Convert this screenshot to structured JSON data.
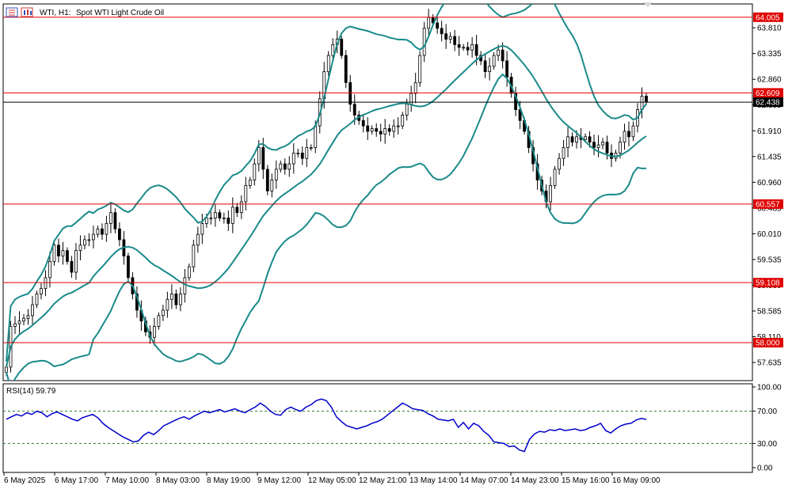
{
  "header": {
    "symbol_label": "WTI, H1:",
    "description": "Spot WTI Light Crude Oil"
  },
  "colors": {
    "background": "#ffffff",
    "frame": "#000000",
    "candle": "#000000",
    "bollinger": "#1a8a8a",
    "hline": "#e00000",
    "price_line": "#000000",
    "rsi_line": "#0000cc",
    "rsi_level": "#2a7a2a",
    "label_text": "#ffffff",
    "icon_red": "#d03030",
    "icon_blue": "#3050c0"
  },
  "chart_data": [
    {
      "type": "candlestick",
      "name": "price",
      "timeframe": "H1",
      "ylim": [
        57.3,
        64.25
      ],
      "yticks": [
        57.635,
        58.11,
        58.585,
        59.06,
        59.535,
        60.01,
        60.485,
        60.96,
        61.435,
        61.91,
        62.385,
        62.86,
        63.335,
        63.81
      ],
      "ytick_labels": [
        "57.635",
        "58.110",
        "58.585",
        "59.060",
        "59.535",
        "60.010",
        "60.485",
        "60.960",
        "61.435",
        "61.910",
        "62.385",
        "62.860",
        "63.335",
        "63.810"
      ],
      "xtick_labels": [
        "6 May 2025",
        "6 May 17:00",
        "7 May 10:00",
        "8 May 03:00",
        "8 May 19:00",
        "9 May 12:00",
        "12 May 05:00",
        "12 May 21:00",
        "13 May 14:00",
        "14 May 07:00",
        "14 May 23:00",
        "15 May 16:00",
        "16 May 09:00"
      ],
      "horizontal_levels": [
        {
          "value": 64.005,
          "label": "64.005"
        },
        {
          "value": 62.609,
          "label": "62.609"
        },
        {
          "value": 60.557,
          "label": "60.557"
        },
        {
          "value": 59.108,
          "label": "59.108"
        },
        {
          "value": 58.0,
          "label": "58.000"
        }
      ],
      "current_price": {
        "value": 62.438,
        "label": "62.438"
      },
      "closes": [
        57.55,
        58.3,
        58.35,
        58.4,
        58.45,
        58.5,
        58.7,
        58.9,
        59.0,
        59.2,
        59.5,
        59.8,
        59.6,
        59.7,
        59.5,
        59.3,
        59.7,
        59.8,
        59.9,
        59.9,
        60.0,
        60.1,
        60.0,
        60.2,
        60.4,
        60.1,
        59.9,
        59.6,
        59.2,
        58.9,
        58.6,
        58.4,
        58.2,
        58.1,
        58.3,
        58.5,
        58.6,
        58.8,
        58.9,
        58.7,
        58.9,
        59.2,
        59.4,
        59.8,
        60.0,
        60.2,
        60.3,
        60.3,
        60.4,
        60.3,
        60.3,
        60.2,
        60.5,
        60.4,
        60.6,
        60.9,
        61.0,
        61.3,
        61.6,
        61.2,
        60.8,
        61.0,
        61.2,
        61.3,
        61.2,
        61.3,
        61.5,
        61.5,
        61.4,
        61.6,
        61.6,
        62.0,
        62.5,
        63.0,
        63.3,
        63.5,
        63.6,
        63.3,
        62.8,
        62.4,
        62.2,
        62.1,
        62.0,
        61.9,
        61.95,
        61.9,
        61.85,
        61.95,
        61.9,
        62.0,
        62.0,
        62.2,
        62.4,
        62.6,
        62.8,
        63.3,
        63.8,
        64.0,
        63.9,
        63.8,
        63.7,
        63.6,
        63.65,
        63.5,
        63.45,
        63.45,
        63.4,
        63.5,
        63.3,
        63.2,
        63.0,
        63.1,
        63.3,
        63.4,
        63.2,
        62.9,
        62.6,
        62.3,
        62.1,
        61.9,
        61.6,
        61.3,
        61.0,
        60.8,
        60.6,
        60.9,
        61.2,
        61.4,
        61.6,
        61.8,
        61.7,
        61.8,
        61.75,
        61.8,
        61.7,
        61.6,
        61.65,
        61.7,
        61.5,
        61.4,
        61.5,
        61.7,
        61.9,
        61.8,
        62.0,
        62.3,
        62.55,
        62.45
      ]
    },
    {
      "type": "line",
      "name": "RSI(14)",
      "title": "RSI(14) 59.79",
      "ylim": [
        0,
        100
      ],
      "yticks": [
        0,
        30,
        70,
        100
      ],
      "ytick_labels": [
        "0.00",
        "30.00",
        "70.00",
        "100.00"
      ],
      "levels": [
        30,
        70
      ],
      "values": [
        60,
        63,
        66,
        64,
        68,
        66,
        70,
        68,
        63,
        67,
        69,
        66,
        63,
        60,
        58,
        62,
        64,
        66,
        62,
        55,
        50,
        46,
        42,
        38,
        35,
        32,
        33,
        40,
        44,
        41,
        46,
        52,
        55,
        58,
        61,
        63,
        60,
        64,
        67,
        70,
        68,
        70,
        72,
        69,
        71,
        73,
        70,
        68,
        72,
        75,
        80,
        76,
        70,
        66,
        65,
        72,
        75,
        72,
        70,
        75,
        78,
        83,
        85,
        83,
        75,
        63,
        57,
        52,
        50,
        48,
        50,
        52,
        55,
        57,
        60,
        65,
        70,
        75,
        80,
        77,
        73,
        72,
        71,
        67,
        64,
        60,
        59,
        58,
        60,
        50,
        56,
        48,
        55,
        52,
        45,
        40,
        32,
        31,
        30,
        26,
        27,
        22,
        20,
        35,
        42,
        45,
        44,
        47,
        46,
        48,
        46,
        47,
        48,
        46,
        47,
        50,
        52,
        55,
        46,
        43,
        48,
        52,
        54,
        55,
        59,
        61,
        59.79
      ]
    }
  ]
}
